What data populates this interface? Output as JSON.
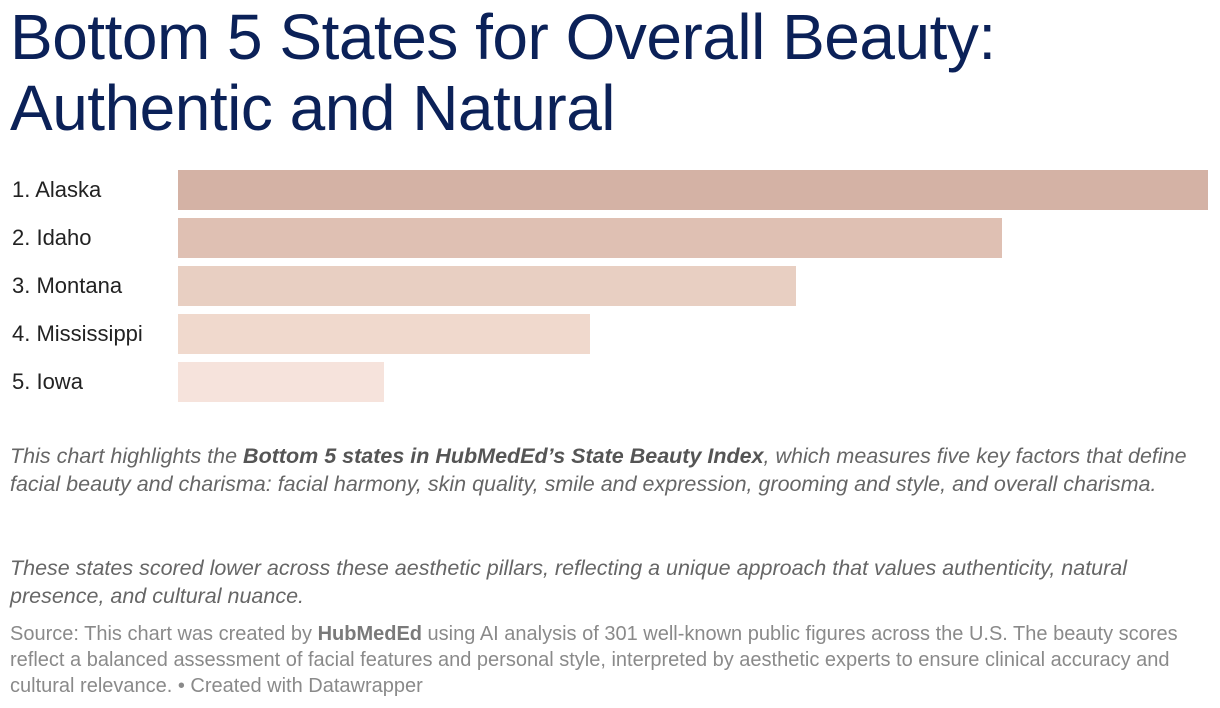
{
  "title": "Bottom 5 States for Overall Beauty: Authentic and Natural",
  "chart_data": {
    "type": "bar",
    "orientation": "horizontal",
    "categories": [
      "1. Alaska",
      "2. Idaho",
      "3. Montana",
      "4. Mississippi",
      "5. Iowa"
    ],
    "values": [
      5,
      4,
      3,
      2,
      1
    ],
    "colors": [
      "#d4b2a5",
      "#dfc0b3",
      "#e8cfc2",
      "#f0d9cd",
      "#f6e3dc"
    ],
    "xlim": [
      0,
      5
    ],
    "grid": false,
    "axis_labels_shown": false
  },
  "description": {
    "p1_before": "This chart highlights the ",
    "p1_bold": "Bottom 5 states in HubMedEd’s State Beauty Index",
    "p1_after": ", which measures five key factors that define facial beauty and charisma: facial harmony, skin quality, smile and expression, grooming and style, and overall charisma.",
    "p2": "These states scored lower across these aesthetic pillars, reflecting a unique approach that values authenticity, natural presence, and cultural nuance."
  },
  "source": {
    "prefix": "Source: This chart was created by ",
    "brand": "HubMedEd",
    "text": " using AI analysis of 301 well-known public figures across the U.S. The beauty scores reflect a balanced assessment of facial features and personal style, interpreted by aesthetic experts to ensure clinical accuracy and cultural relevance.",
    "credit": " • Created with Datawrapper"
  }
}
